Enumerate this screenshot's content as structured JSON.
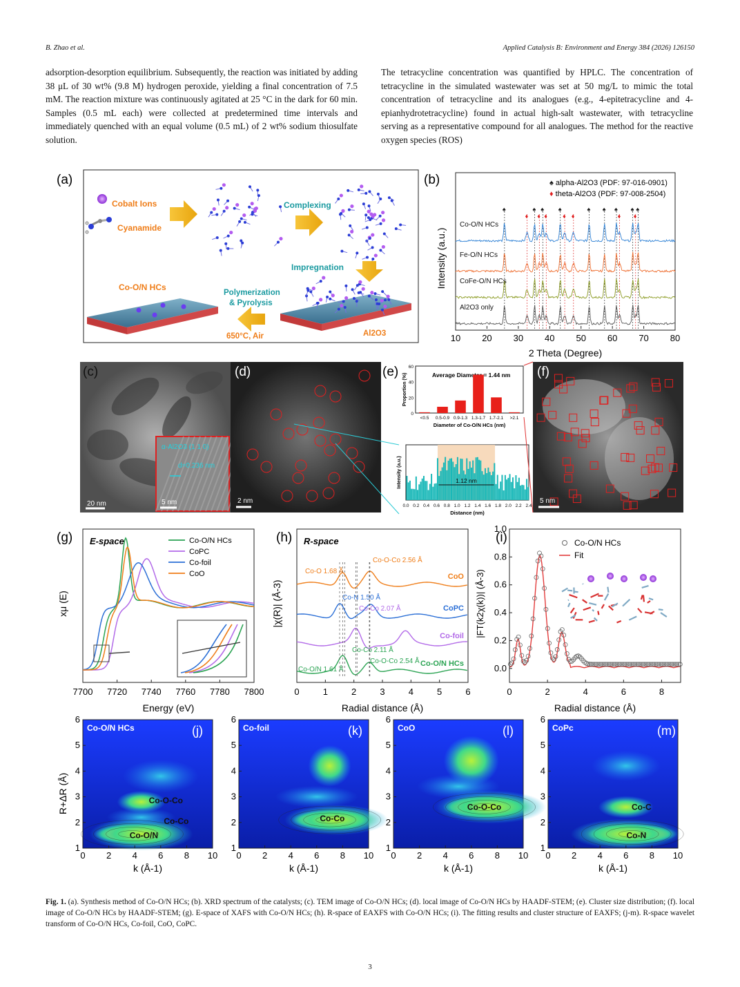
{
  "header": {
    "left": "B. Zhao et al.",
    "right": "Applied Catalysis B: Environment and Energy 384 (2026) 126150"
  },
  "body": {
    "left_col": "adsorption-desorption equilibrium. Subsequently, the reaction was initiated by adding 38 μL of 30 wt% (9.8 M) hydrogen peroxide, yielding a final concentration of 7.5 mM. The reaction mixture was continuously agitated at 25 °C in the dark for 60 min. Samples (0.5 mL each) were collected at predetermined time intervals and immediately quenched with an equal volume (0.5 mL) of 2 wt% sodium thiosulfate solution.",
    "right_col": "The tetracycline concentration was quantified by HPLC. The concentration of tetracycline in the simulated wastewater was set at 50 mg/L to mimic the total concentration of tetracycline and its analogues (e.g., 4-epitetracycline and 4-epianhydrotetracycline) found in actual high-salt wastewater, with tetracycline serving as a representative compound for all analogues. The method for the reactive oxygen species (ROS)"
  },
  "figure": {
    "panel_a": {
      "tag": "(a)",
      "cobalt_ions": "Cobalt Ions",
      "cyanamide": "Cyanamide",
      "complexing": "Complexing",
      "impregnation": "Impregnation",
      "product": "Co-O/N HCs",
      "poly1": "Polymerization",
      "poly2": "& Pyrolysis",
      "condition": "650°C, Air",
      "support": "Al2O3"
    },
    "panel_b": {
      "tag": "(b)",
      "legend_alpha": "alpha-Al2O3 (PDF: 97-016-0901)",
      "legend_theta": "theta-Al2O3 (PDF: 97-008-2504)",
      "ylabel": "Intensity (a.u.)",
      "xlabel": "2 Theta (Degree)"
    },
    "panel_c": {
      "tag": "(c)",
      "scale": "20 nm",
      "inset_phase": "α-Al2O3 (1 1 0)",
      "inset_d": "d=0.236 nm",
      "inset_scale": "5 nm"
    },
    "panel_d": {
      "tag": "(d)",
      "scale": "2 nm"
    },
    "panel_e": {
      "tag": "(e)",
      "title": "Average Diameter = 1.44 nm",
      "ylabel_top": "Proportion (%)",
      "xlabel_top": "Diameter of Co-O/N HCs (nm)",
      "ylabel_bottom": "Intensity (a.u.)",
      "xlabel_bottom": "Distance (nm)",
      "width_label": "1.12 nm"
    },
    "panel_f": {
      "tag": "(f)",
      "scale": "5 nm"
    },
    "panel_g": {
      "tag": "(g)",
      "title": "E-space",
      "ylabel": "xμ (E)",
      "xlabel": "Energy (eV)"
    },
    "panel_h": {
      "tag": "(h)",
      "title": "R-space",
      "ylabel": "|χ(R)| (Å-3)",
      "xlabel": "Radial distance (Å)",
      "annotations": [
        "Co-O 1.68 Å",
        "Co-O-Co 2.56 Å",
        "Co-N 1.50 Å",
        "Co-Co 2.07 Å",
        "Co-Co 2.11 Å",
        "Co-O/N 1.61 Å",
        "Co-O-Co 2.54 Å"
      ]
    },
    "panel_i": {
      "tag": "(i)",
      "ylabel": "|FT(k2χ(k))| (Å-3)",
      "xlabel": "Radial distance (Å)"
    },
    "wavelets": {
      "ylabel": "R+ΔR (Å)",
      "xlabel": "k (Å-1)",
      "panels": [
        {
          "tag": "(j)",
          "name": "Co-O/N HCs",
          "labels": [
            "Co-O-Co",
            "Co-Co",
            "Co-O/N"
          ]
        },
        {
          "tag": "(k)",
          "name": "Co-foil",
          "labels": [
            "Co-Co"
          ]
        },
        {
          "tag": "(l)",
          "name": "CoO",
          "labels": [
            "Co-O-Co"
          ]
        },
        {
          "tag": "(m)",
          "name": "CoPc",
          "labels": [
            "Co-C",
            "Co-N"
          ]
        }
      ]
    }
  },
  "chart_data": [
    {
      "type": "bar",
      "panel": "e-top",
      "title": "Average Diameter = 1.44 nm",
      "categories": [
        "<0.5",
        "0.5-0.9",
        "0.9-1.3",
        "1.3-1.7",
        "1.7-2.1",
        ">2.1"
      ],
      "values": [
        1,
        8,
        16,
        49,
        20,
        1
      ],
      "ylabel": "Proportion (%)",
      "xlabel": "Diameter of Co-O/N HCs (nm)",
      "ylim": [
        0,
        60
      ],
      "yticks": [
        0,
        20,
        40,
        60
      ]
    },
    {
      "type": "line",
      "panel": "e-bottom",
      "xlabel": "Distance (nm)",
      "ylabel": "Intensity (a.u.)",
      "xticks": [
        "0.0",
        "0.2",
        "0.4",
        "0.6",
        "0.8",
        "1.0",
        "1.2",
        "1.4",
        "1.6",
        "1.8",
        "2.0",
        "2.2",
        "2.4"
      ],
      "xlim": [
        0,
        2.4
      ]
    },
    {
      "type": "line",
      "panel": "b",
      "xlabel": "2 Theta (Degree)",
      "ylabel": "Intensity (a.u.)",
      "xlim": [
        10,
        80
      ],
      "xticks": [
        10,
        20,
        30,
        40,
        50,
        60,
        70,
        80
      ],
      "series": [
        {
          "name": "Co-O/N HCs",
          "color": "#2b7fd4"
        },
        {
          "name": "Fe-O/N HCs",
          "color": "#ee6b2c"
        },
        {
          "name": "CoFe-O/N HCs",
          "color": "#8a9a20"
        },
        {
          "name": "Al2O3 only",
          "color": "#555555"
        }
      ],
      "alpha_peaks": [
        25.6,
        35.2,
        37.8,
        43.4,
        52.6,
        57.5,
        61.3,
        66.5,
        68.2
      ],
      "theta_peaks": [
        32.8,
        36.7,
        38.9,
        44.8,
        47.6,
        62.3,
        67.4
      ]
    },
    {
      "type": "line",
      "panel": "g",
      "xlabel": "Energy (eV)",
      "ylabel": "xμ (E)",
      "xlim": [
        7700,
        7800
      ],
      "xticks": [
        7700,
        7720,
        7740,
        7760,
        7780,
        7800
      ],
      "series": [
        {
          "name": "Co-O/N HCs",
          "color": "#2aa352"
        },
        {
          "name": "CoPC",
          "color": "#b26ae8"
        },
        {
          "name": "Co-foil",
          "color": "#2b6fd6"
        },
        {
          "name": "CoO",
          "color": "#ef7d18"
        }
      ]
    },
    {
      "type": "line",
      "panel": "h",
      "xlabel": "Radial distance (Å)",
      "ylabel": "|χ(R)| (Å-3)",
      "xlim": [
        0,
        6
      ],
      "xticks": [
        0,
        1,
        2,
        3,
        4,
        5,
        6
      ],
      "series": [
        {
          "name": "CoO",
          "color": "#ef7d18"
        },
        {
          "name": "CoPC",
          "color": "#2b6fd6"
        },
        {
          "name": "Co-foil",
          "color": "#b26ae8"
        },
        {
          "name": "Co-O/N HCs",
          "color": "#2aa352"
        }
      ]
    },
    {
      "type": "line",
      "panel": "i",
      "xlabel": "Radial distance (Å)",
      "ylabel": "|FT(k2χ(k))| (Å-3)",
      "xlim": [
        0,
        9
      ],
      "ylim": [
        -0.1,
        1.0
      ],
      "xticks": [
        0,
        2,
        4,
        6,
        8
      ],
      "yticks": [
        "0.0",
        "0.2",
        "0.4",
        "0.6",
        "0.8",
        "1.0"
      ],
      "series": [
        {
          "name": "Co-O/N HCs",
          "style": "open circles"
        },
        {
          "name": "Fit",
          "color": "#e33a3a"
        }
      ]
    },
    {
      "type": "heatmap",
      "panel": "j-m",
      "xlabel": "k (Å-1)",
      "ylabel": "R+ΔR (Å)",
      "xlim": [
        0,
        10
      ],
      "ylim": [
        1,
        6
      ],
      "xticks": [
        0,
        2,
        4,
        6,
        8,
        10
      ],
      "yticks": [
        1,
        2,
        3,
        4,
        5,
        6
      ]
    }
  ],
  "caption": {
    "label": "Fig. 1.",
    "text": " (a). Synthesis method of Co-O/N HCs; (b). XRD spectrum of the catalysts; (c). TEM image of Co-O/N HCs; (d). local image of Co-O/N HCs by HAADF-STEM; (e). Cluster size distribution; (f). local image of Co-O/N HCs by HAADF-STEM; (g). E-space of XAFS with Co-O/N HCs; (h). R-space of EAXFS with Co-O/N HCs; (i). The fitting results and cluster structure of EAXFS; (j-m). R-space wavelet transform of Co-O/N HCs, Co-foil, CoO, CoPC."
  },
  "page_number": "3"
}
